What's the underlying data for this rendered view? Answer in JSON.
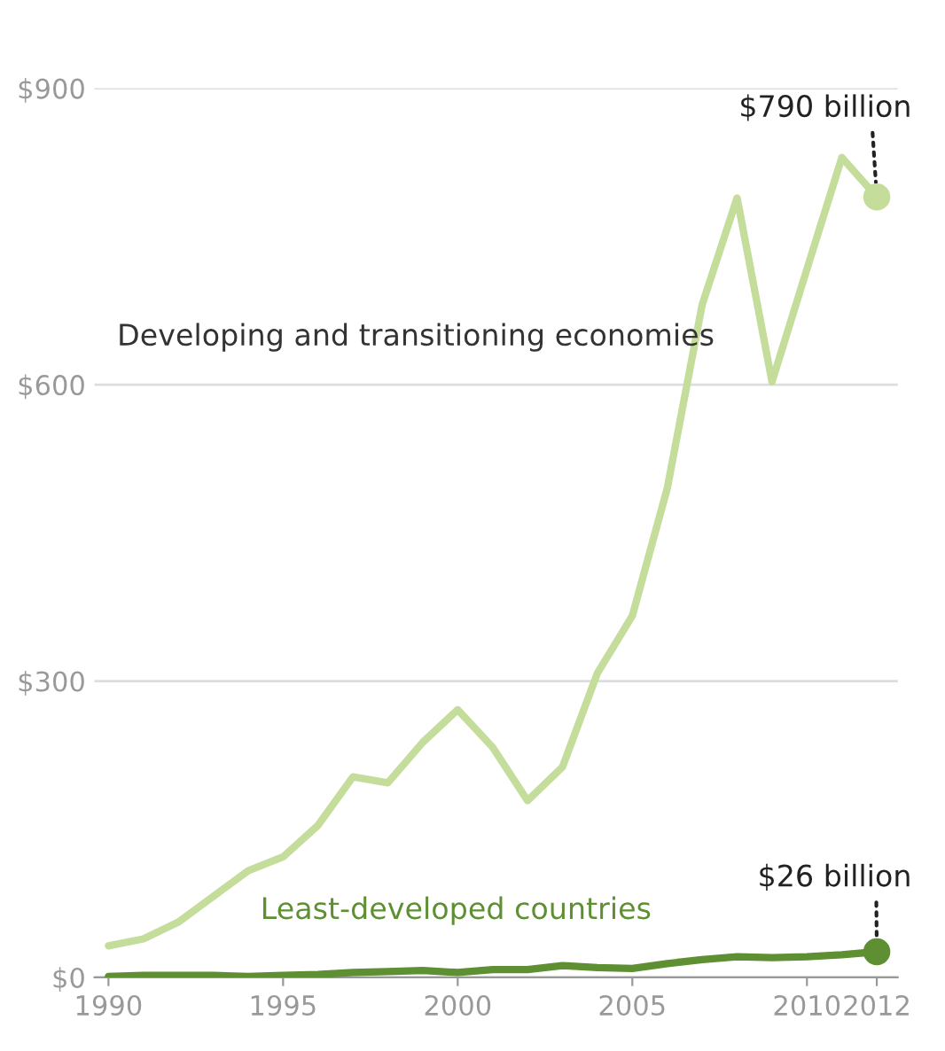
{
  "chart_data": {
    "type": "line",
    "x": [
      1990,
      1991,
      1992,
      1993,
      1994,
      1995,
      1996,
      1997,
      1998,
      1999,
      2000,
      2001,
      2002,
      2003,
      2004,
      2005,
      2006,
      2007,
      2008,
      2009,
      2010,
      2011,
      2012
    ],
    "series": [
      {
        "name": "Developing and transitioning economies",
        "color": "#c5dd9b",
        "values": [
          32,
          39,
          56,
          82,
          108,
          122,
          154,
          203,
          197,
          238,
          271,
          233,
          179,
          213,
          308,
          366,
          495,
          681,
          789,
          603,
          717,
          830,
          790
        ]
      },
      {
        "name": "Least-developed countries",
        "color": "#5e8f32",
        "values": [
          1,
          2,
          2,
          2,
          1,
          2,
          3,
          5,
          6,
          7,
          5,
          8,
          8,
          12,
          10,
          9,
          14,
          18,
          21,
          20,
          21,
          23,
          26
        ]
      }
    ],
    "xlim": [
      1989.6,
      2012.6
    ],
    "ylim": [
      0,
      900
    ],
    "xticks": [
      1990,
      1995,
      2000,
      2005,
      2010,
      2012
    ],
    "yticks": [
      {
        "value": 0,
        "label": "$0"
      },
      {
        "value": 300,
        "label": "$300"
      },
      {
        "value": 600,
        "label": "$600"
      },
      {
        "value": 900,
        "label": "$900"
      }
    ],
    "grid": "y",
    "legend": false,
    "marker": "none",
    "line_style": "solid",
    "annotations": [
      {
        "text": "$790 billion",
        "x": 2012,
        "y": 790
      },
      {
        "text": "$26 billion",
        "x": 2012,
        "y": 26
      }
    ]
  }
}
